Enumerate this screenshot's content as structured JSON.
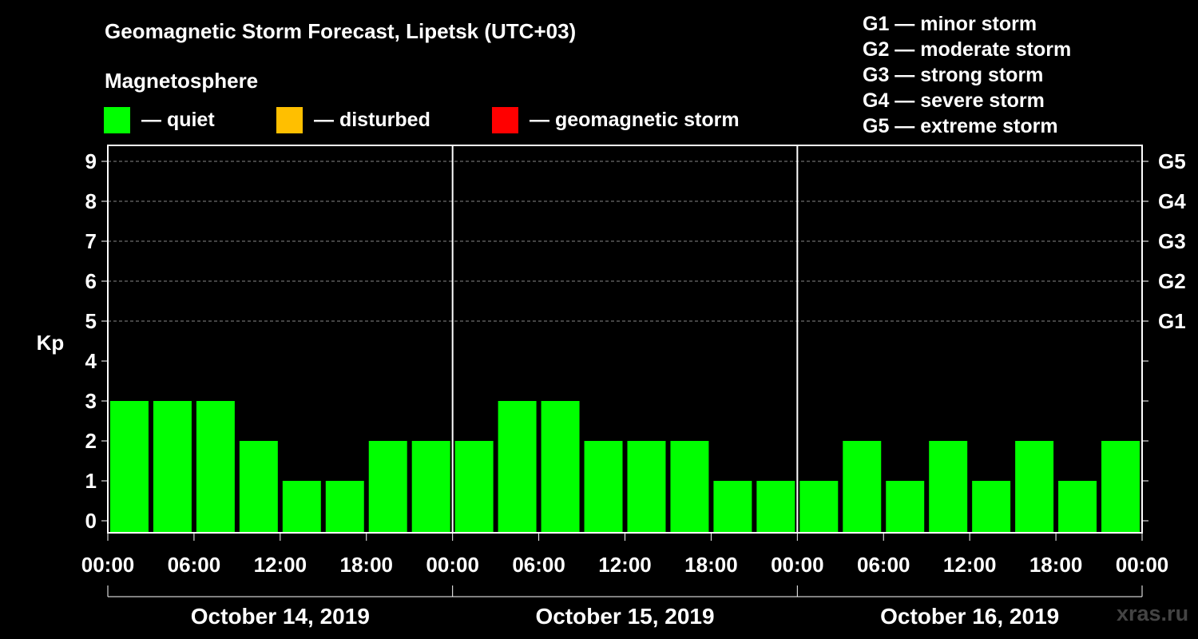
{
  "title": "Geomagnetic Storm Forecast, Lipetsk (UTC+03)",
  "magnetosphere_label": "Magnetosphere",
  "legend": [
    {
      "label": "— quiet",
      "color": "#00ff00"
    },
    {
      "label": "— disturbed",
      "color": "#ffbf00"
    },
    {
      "label": "— geomagnetic storm",
      "color": "#ff0000"
    }
  ],
  "storm_scale": [
    "G1 — minor storm",
    "G2 — moderate storm",
    "G3 — strong storm",
    "G4 — severe storm",
    "G5 — extreme storm"
  ],
  "watermark": "xras.ru",
  "chart_data": {
    "type": "bar",
    "title": "Geomagnetic Storm Forecast, Lipetsk (UTC+03)",
    "ylabel": "Kp",
    "ylim": [
      0,
      9
    ],
    "yticks": [
      "0",
      "1",
      "2",
      "3",
      "4",
      "5",
      "6",
      "7",
      "8",
      "9"
    ],
    "right_axis_labels": [
      {
        "kp": 5,
        "label": "G1"
      },
      {
        "kp": 6,
        "label": "G2"
      },
      {
        "kp": 7,
        "label": "G3"
      },
      {
        "kp": 8,
        "label": "G4"
      },
      {
        "kp": 9,
        "label": "G5"
      }
    ],
    "x_tick_labels": [
      "00:00",
      "06:00",
      "12:00",
      "18:00",
      "00:00",
      "06:00",
      "12:00",
      "18:00",
      "00:00",
      "06:00",
      "12:00",
      "18:00",
      "00:00"
    ],
    "days": [
      "October 14, 2019",
      "October 15, 2019",
      "October 16, 2019"
    ],
    "bar_color": "#00ff00",
    "values": [
      3,
      3,
      3,
      2,
      1,
      1,
      2,
      2,
      2,
      3,
      3,
      2,
      2,
      2,
      1,
      1,
      1,
      2,
      1,
      2,
      1,
      2,
      1,
      2
    ]
  }
}
